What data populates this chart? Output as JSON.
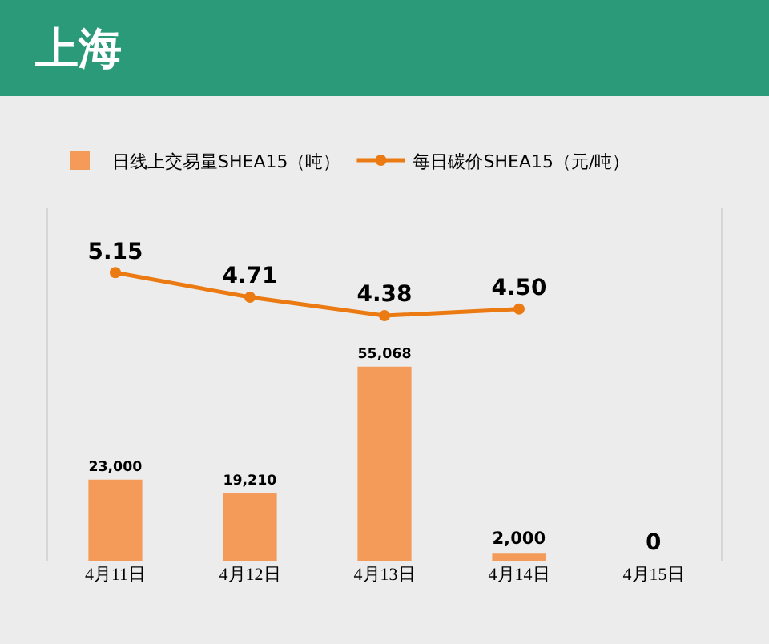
{
  "chart_data": {
    "type": "bar",
    "title": "上海",
    "categories": [
      "4月11日",
      "4月12日",
      "4月13日",
      "4月14日",
      "4月15日"
    ],
    "series": [
      {
        "name": "日线上交易量SHEA15（吨）",
        "color": "#f49b59",
        "values": [
          23000,
          19210,
          55068,
          2000,
          0
        ],
        "value_labels": [
          "23,000",
          "19,210",
          "55,068",
          "2,000",
          "0"
        ]
      },
      {
        "name": "每日碳价SHEA15（元/吨）",
        "type": "line",
        "axis": "y2",
        "color": "#eb7a12",
        "values": [
          5.15,
          4.71,
          4.38,
          4.5,
          null
        ],
        "value_labels": [
          "5.15",
          "4.71",
          "4.38",
          "4.50",
          null
        ]
      }
    ],
    "ylim": [
      0,
      100000
    ],
    "y2lim": [
      0,
      6.3
    ],
    "tick_labels": "x",
    "grid": false,
    "legend": "top left",
    "marker": "circle",
    "line_style": "solid"
  }
}
